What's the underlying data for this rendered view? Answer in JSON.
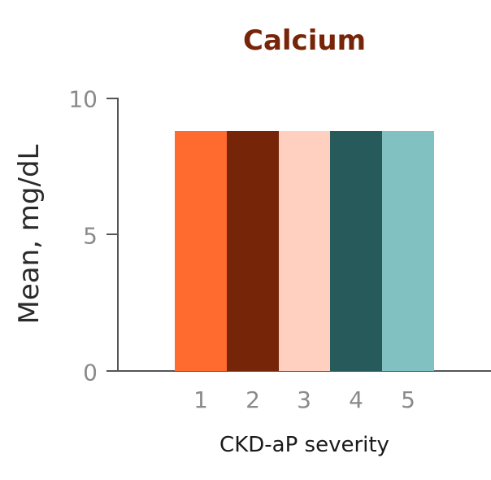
{
  "chart_data": {
    "type": "bar",
    "title": "Calcium",
    "xlabel": "CKD-aP severity",
    "ylabel": "Mean, mg/dL",
    "categories": [
      "1",
      "2",
      "3",
      "4",
      "5"
    ],
    "values": [
      8.8,
      8.8,
      8.8,
      8.8,
      8.8
    ],
    "colors": [
      "#ff6a2f",
      "#772508",
      "#ffd0c0",
      "#275a5b",
      "#82c1c2"
    ],
    "ylim": [
      0,
      10
    ],
    "yticks": [
      "0",
      "5",
      "10"
    ],
    "grid": false,
    "legend": null
  }
}
